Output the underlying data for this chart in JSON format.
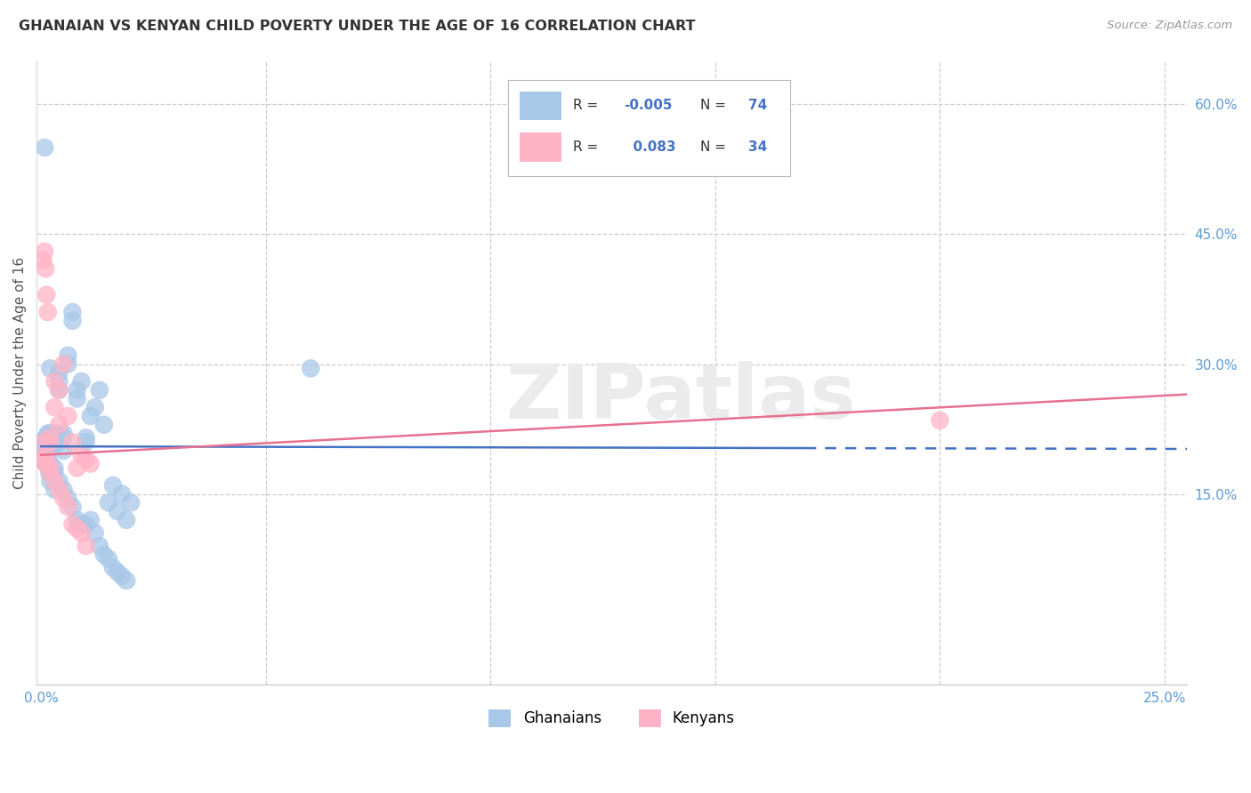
{
  "title": "GHANAIAN VS KENYAN CHILD POVERTY UNDER THE AGE OF 16 CORRELATION CHART",
  "source": "Source: ZipAtlas.com",
  "ylabel": "Child Poverty Under the Age of 16",
  "xlim": [
    -0.001,
    0.255
  ],
  "ylim": [
    -0.07,
    0.65
  ],
  "xticks": [
    0.0,
    0.05,
    0.1,
    0.15,
    0.2,
    0.25
  ],
  "xticklabels": [
    "0.0%",
    "",
    "",
    "",
    "",
    "25.0%"
  ],
  "yticks_right": [
    0.6,
    0.45,
    0.3,
    0.15
  ],
  "yticklabels_right": [
    "60.0%",
    "45.0%",
    "30.0%",
    "15.0%"
  ],
  "legend_R_blue": "-0.005",
  "legend_N_blue": "74",
  "legend_R_pink": "0.083",
  "legend_N_pink": "34",
  "blue_color": "#A8C8E8",
  "pink_color": "#FFB3C6",
  "blue_line_color": "#4472C4",
  "pink_line_color": "#E87090",
  "watermark": "ZIPatlas",
  "grid_color": "#CCCCCC",
  "tick_color": "#5B9BD5",
  "ghana_x": [
    0.0005,
    0.0008,
    0.001,
    0.001,
    0.0012,
    0.0015,
    0.0015,
    0.002,
    0.002,
    0.002,
    0.0025,
    0.003,
    0.003,
    0.003,
    0.003,
    0.004,
    0.004,
    0.004,
    0.005,
    0.005,
    0.005,
    0.006,
    0.006,
    0.007,
    0.007,
    0.008,
    0.008,
    0.009,
    0.01,
    0.01,
    0.011,
    0.012,
    0.013,
    0.014,
    0.015,
    0.016,
    0.017,
    0.018,
    0.019,
    0.02,
    0.0005,
    0.001,
    0.001,
    0.0015,
    0.002,
    0.002,
    0.003,
    0.003,
    0.004,
    0.005,
    0.006,
    0.007,
    0.008,
    0.009,
    0.01,
    0.011,
    0.012,
    0.013,
    0.014,
    0.015,
    0.016,
    0.017,
    0.018,
    0.019,
    0.0007,
    0.0005,
    0.002,
    0.06,
    0.0008,
    0.001,
    0.0012,
    0.0018,
    0.002,
    0.003
  ],
  "ghana_y": [
    0.21,
    0.205,
    0.2,
    0.21,
    0.215,
    0.22,
    0.2,
    0.21,
    0.215,
    0.22,
    0.215,
    0.205,
    0.21,
    0.22,
    0.215,
    0.27,
    0.29,
    0.28,
    0.2,
    0.215,
    0.22,
    0.3,
    0.31,
    0.35,
    0.36,
    0.27,
    0.26,
    0.28,
    0.21,
    0.215,
    0.24,
    0.25,
    0.27,
    0.23,
    0.14,
    0.16,
    0.13,
    0.15,
    0.12,
    0.14,
    0.195,
    0.195,
    0.185,
    0.19,
    0.18,
    0.185,
    0.175,
    0.18,
    0.165,
    0.155,
    0.145,
    0.135,
    0.12,
    0.115,
    0.115,
    0.12,
    0.105,
    0.09,
    0.08,
    0.075,
    0.065,
    0.06,
    0.055,
    0.05,
    0.21,
    0.19,
    0.295,
    0.295,
    0.55,
    0.215,
    0.185,
    0.175,
    0.165,
    0.155
  ],
  "kenya_x": [
    0.0005,
    0.0008,
    0.001,
    0.0012,
    0.0015,
    0.002,
    0.002,
    0.003,
    0.003,
    0.004,
    0.004,
    0.005,
    0.006,
    0.007,
    0.008,
    0.009,
    0.01,
    0.011,
    0.0005,
    0.001,
    0.0015,
    0.002,
    0.003,
    0.004,
    0.005,
    0.006,
    0.007,
    0.008,
    0.009,
    0.01,
    0.0007,
    0.001,
    0.002,
    0.2
  ],
  "kenya_y": [
    0.42,
    0.43,
    0.41,
    0.38,
    0.36,
    0.21,
    0.215,
    0.25,
    0.28,
    0.23,
    0.27,
    0.3,
    0.24,
    0.21,
    0.18,
    0.195,
    0.19,
    0.185,
    0.19,
    0.195,
    0.185,
    0.175,
    0.165,
    0.155,
    0.145,
    0.135,
    0.115,
    0.11,
    0.105,
    0.09,
    0.21,
    0.185,
    0.18,
    0.235
  ]
}
